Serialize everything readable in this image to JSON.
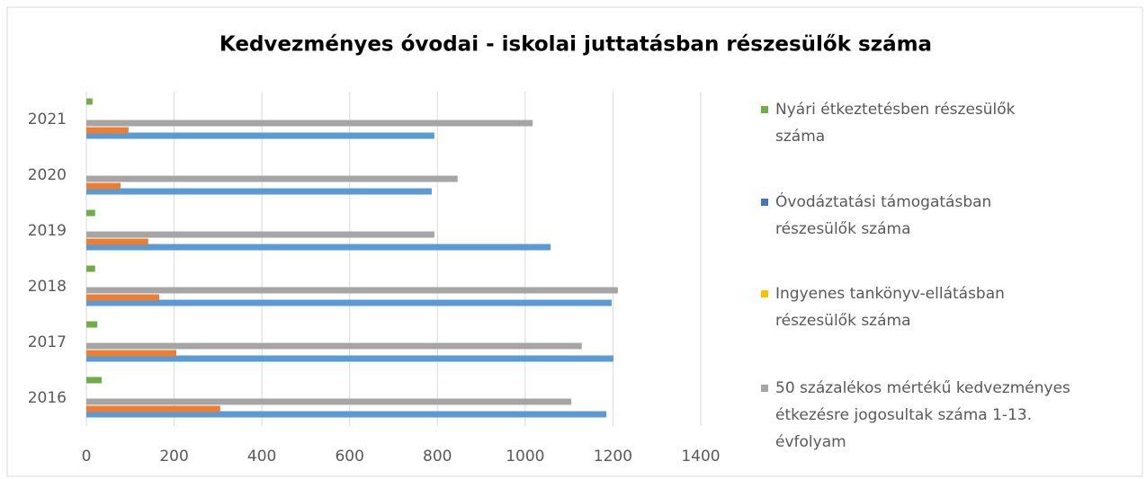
{
  "chart_data": {
    "type": "hbar",
    "title": "Kedvezményes óvodai - iskolai juttatásban részesülők száma",
    "categories": [
      "2016",
      "2017",
      "2018",
      "2019",
      "2020",
      "2021"
    ],
    "series": [
      {
        "name": "Nyári étkeztetésben részesülők száma",
        "color": "#70ad47",
        "legend_color": "#70ad47",
        "values": [
          35,
          25,
          20,
          20,
          null,
          14
        ]
      },
      {
        "name": "Óvodáztatási támogatásban részesülők száma",
        "color": "#5b9bd5",
        "legend_color": "#4472c4",
        "values": [
          1185,
          1201,
          1197,
          1058,
          787,
          793
        ]
      },
      {
        "name": "Ingyenes tankönyv-ellátásban részesülők száma",
        "color": "#ed7d31",
        "legend_color": "#ffc000",
        "values": [
          305,
          205,
          166,
          141,
          78,
          96
        ]
      },
      {
        "name": "50 százalékos mértékű kedvezményes étkezésre jogosultak száma 1-13. évfolyam",
        "color": "#a5a5a5",
        "legend_color": "#a5a5a5",
        "values": [
          1105,
          1129,
          1211,
          793,
          846,
          1017
        ]
      }
    ],
    "xlim": [
      0,
      1400
    ],
    "xticks": [
      0,
      200,
      400,
      600,
      800,
      1000,
      1200,
      1400
    ],
    "grid": true
  }
}
